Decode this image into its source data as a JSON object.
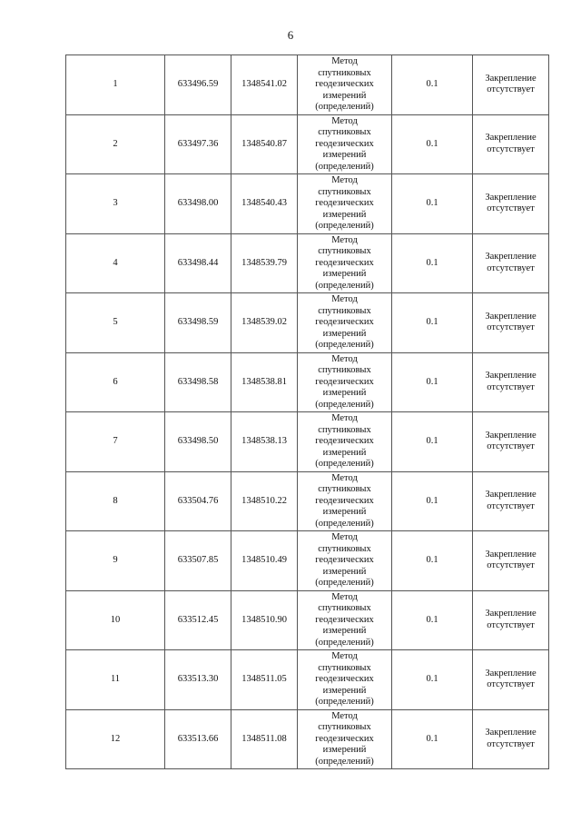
{
  "page_number": "6",
  "method_lines": [
    "Метод",
    "спутниковых",
    "геодезических",
    "измерений",
    "(определений)"
  ],
  "rows": [
    {
      "n": "1",
      "x": "633496.59",
      "y": "1348541.02",
      "accuracy": "0.1",
      "fixing": "Закрепление отсутствует"
    },
    {
      "n": "2",
      "x": "633497.36",
      "y": "1348540.87",
      "accuracy": "0.1",
      "fixing": "Закрепление отсутствует"
    },
    {
      "n": "3",
      "x": "633498.00",
      "y": "1348540.43",
      "accuracy": "0.1",
      "fixing": "Закрепление отсутствует"
    },
    {
      "n": "4",
      "x": "633498.44",
      "y": "1348539.79",
      "accuracy": "0.1",
      "fixing": "Закрепление отсутствует"
    },
    {
      "n": "5",
      "x": "633498.59",
      "y": "1348539.02",
      "accuracy": "0.1",
      "fixing": "Закрепление отсутствует"
    },
    {
      "n": "6",
      "x": "633498.58",
      "y": "1348538.81",
      "accuracy": "0.1",
      "fixing": "Закрепление отсутствует"
    },
    {
      "n": "7",
      "x": "633498.50",
      "y": "1348538.13",
      "accuracy": "0.1",
      "fixing": "Закрепление отсутствует"
    },
    {
      "n": "8",
      "x": "633504.76",
      "y": "1348510.22",
      "accuracy": "0.1",
      "fixing": "Закрепление отсутствует"
    },
    {
      "n": "9",
      "x": "633507.85",
      "y": "1348510.49",
      "accuracy": "0.1",
      "fixing": "Закрепление отсутствует"
    },
    {
      "n": "10",
      "x": "633512.45",
      "y": "1348510.90",
      "accuracy": "0.1",
      "fixing": "Закрепление отсутствует"
    },
    {
      "n": "11",
      "x": "633513.30",
      "y": "1348511.05",
      "accuracy": "0.1",
      "fixing": "Закрепление отсутствует"
    },
    {
      "n": "12",
      "x": "633513.66",
      "y": "1348511.08",
      "accuracy": "0.1",
      "fixing": "Закрепление отсутствует"
    }
  ]
}
